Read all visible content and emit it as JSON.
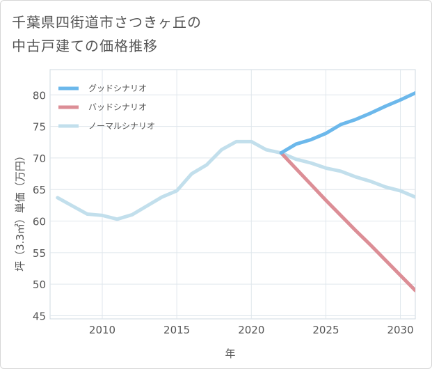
{
  "title": {
    "line1": "千葉県四街道市さつきヶ丘の",
    "line2": "中古戸建ての価格推移"
  },
  "chart_data": {
    "type": "line",
    "xlabel": "年",
    "ylabel": "坪（3.3㎡）単価（万円）",
    "xlim": [
      2006.5,
      2031
    ],
    "ylim": [
      44.5,
      84
    ],
    "xticks": [
      2010,
      2015,
      2020,
      2025,
      2030
    ],
    "yticks": [
      45,
      50,
      55,
      60,
      65,
      70,
      75,
      80
    ],
    "grid": true,
    "legend_position": "top-left",
    "series": [
      {
        "name": "グッドシナリオ",
        "color": "#6cb8eb",
        "x": [
          2022,
          2023,
          2024,
          2025,
          2026,
          2027,
          2028,
          2029,
          2030,
          2031
        ],
        "y": [
          70.8,
          72.2,
          72.9,
          73.9,
          75.3,
          76.1,
          77.1,
          78.2,
          79.2,
          80.3
        ]
      },
      {
        "name": "バッドシナリオ",
        "color": "#dc8e96",
        "x": [
          2022,
          2023,
          2024,
          2025,
          2026,
          2027,
          2028,
          2029,
          2030,
          2031
        ],
        "y": [
          70.8,
          68.3,
          65.8,
          63.3,
          60.9,
          58.5,
          56.2,
          53.8,
          51.4,
          49.0
        ]
      },
      {
        "name": "ノーマルシナリオ",
        "color": "#c2dfec",
        "x": [
          2007,
          2008,
          2009,
          2010,
          2011,
          2012,
          2013,
          2014,
          2015,
          2016,
          2017,
          2018,
          2019,
          2020,
          2021,
          2022,
          2023,
          2024,
          2025,
          2026,
          2027,
          2028,
          2029,
          2030,
          2031
        ],
        "y": [
          63.7,
          62.4,
          61.1,
          60.9,
          60.3,
          61.0,
          62.4,
          63.8,
          64.8,
          67.5,
          68.9,
          71.3,
          72.6,
          72.6,
          71.3,
          70.8,
          69.8,
          69.2,
          68.4,
          67.9,
          67.0,
          66.3,
          65.4,
          64.8,
          63.8
        ]
      }
    ]
  }
}
